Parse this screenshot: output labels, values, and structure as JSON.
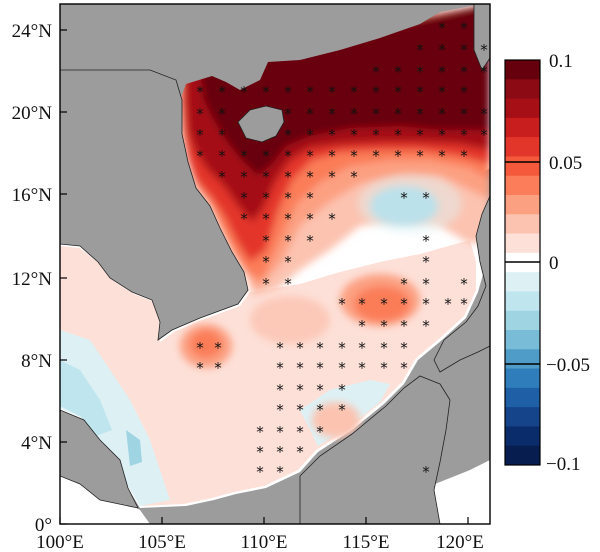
{
  "map": {
    "type": "filled-contour-map",
    "x_ticks": [
      "100°E",
      "105°E",
      "110°E",
      "115°E",
      "120°E"
    ],
    "y_ticks": [
      "0°",
      "4°N",
      "8°N",
      "12°N",
      "16°N",
      "20°N",
      "24°N"
    ],
    "x_range_deg": [
      100,
      121.5
    ],
    "y_range_deg": [
      0,
      25
    ],
    "significance_marker": "*",
    "colors": {
      "land": "#9c9c9c",
      "ocean_mask": "#ffffff",
      "frame": "#000000"
    }
  },
  "colorbar": {
    "tick_labels": [
      "0.1",
      "0.05",
      "0",
      "−0.05",
      "−0.1"
    ],
    "tick_values": [
      0.1,
      0.05,
      0,
      -0.05,
      -0.1
    ],
    "levels_top_to_bottom": [
      "#67000d",
      "#8b0a14",
      "#a50f15",
      "#c81e1e",
      "#e3362b",
      "#f4593b",
      "#fb7d59",
      "#fca082",
      "#fcc3b0",
      "#fde0d8",
      "#ffffff",
      "#ddf1f5",
      "#bfe5ee",
      "#9fd4e3",
      "#78bcd7",
      "#4f9cc9",
      "#2f7dbb",
      "#1f5fa5",
      "#15448a",
      "#0b2c6a",
      "#081d4f"
    ]
  }
}
